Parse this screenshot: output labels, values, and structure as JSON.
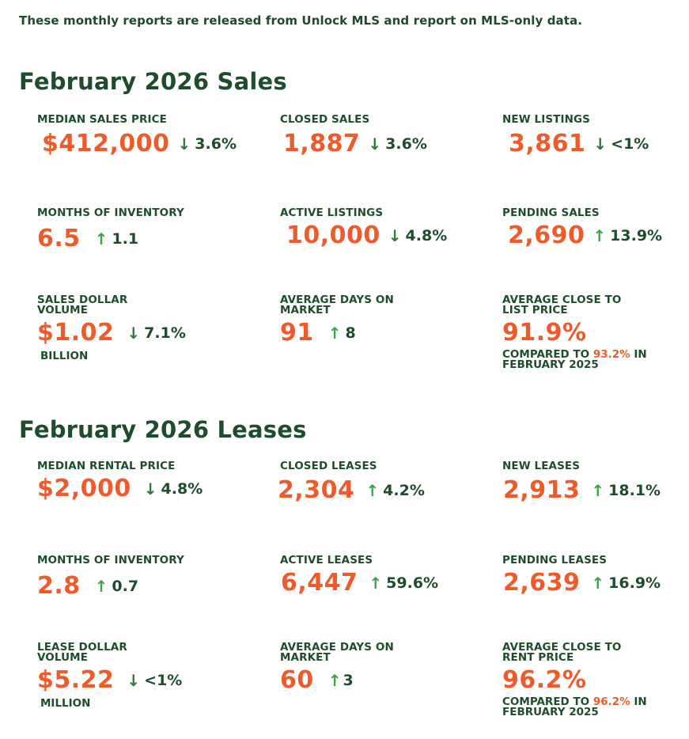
{
  "intro": "These monthly reports are released from Unlock MLS and report on MLS-only data.",
  "colors": {
    "accent": "#ee5a2a",
    "heading": "#1d4d2b",
    "arrow_up": "#3aa447",
    "arrow_down": "#2e7a3a"
  },
  "sales": {
    "title": "February 2026 Sales",
    "median_price": {
      "label": "MEDIAN SALES PRICE",
      "value": "$412,000",
      "arrow": "↓",
      "change": "3.6%"
    },
    "closed_sales": {
      "label": "CLOSED SALES",
      "value": "1,887",
      "arrow": "↓",
      "change": "3.6%"
    },
    "new_listings": {
      "label": "NEW LISTINGS",
      "value": "3,861",
      "arrow": "↓",
      "change": "<1%"
    },
    "months_inventory": {
      "label": "MONTHS OF INVENTORY",
      "value": "6.5",
      "arrow": "↑",
      "change": "1.1"
    },
    "active_listings": {
      "label": "ACTIVE LISTINGS",
      "value": "10,000",
      "arrow": "↓",
      "change": "4.8%"
    },
    "pending_sales": {
      "label": "PENDING SALES",
      "value": "2,690",
      "arrow": "↑",
      "change": "13.9%"
    },
    "dollar_volume": {
      "label_line1": "SALES DOLLAR",
      "label_line2": "VOLUME",
      "value": "$1.02",
      "arrow": "↓",
      "change": "7.1%",
      "unit": "BILLION"
    },
    "days_on_market": {
      "label_line1": "AVERAGE DAYS ON",
      "label_line2": "MARKET",
      "value": "91",
      "arrow": "↑",
      "change": "8"
    },
    "close_to_list": {
      "label_line1": "AVERAGE CLOSE TO",
      "label_line2": "LIST PRICE",
      "value": "91.9%",
      "compare_prefix": "COMPARED TO",
      "compare_value": "93.2%",
      "compare_suffix": "IN",
      "compare_line2": "FEBRUARY 2025"
    }
  },
  "leases": {
    "title": "February 2026 Leases",
    "median_rent": {
      "label": "MEDIAN RENTAL PRICE",
      "value": "$2,000",
      "arrow": "↓",
      "change": "4.8%"
    },
    "closed_leases": {
      "label": "CLOSED LEASES",
      "value": "2,304",
      "arrow": "↑",
      "change": "4.2%"
    },
    "new_leases": {
      "label": "NEW LEASES",
      "value": "2,913",
      "arrow": "↑",
      "change": "18.1%"
    },
    "months_inventory": {
      "label": "MONTHS OF INVENTORY",
      "value": "2.8",
      "arrow": "↑",
      "change": "0.7"
    },
    "active_leases": {
      "label": "ACTIVE LEASES",
      "value": "6,447",
      "arrow": "↑",
      "change": "59.6%"
    },
    "pending_leases": {
      "label": "PENDING LEASES",
      "value": "2,639",
      "arrow": "↑",
      "change": "16.9%"
    },
    "dollar_volume": {
      "label_line1": "LEASE DOLLAR",
      "label_line2": "VOLUME",
      "value": "$5.22",
      "arrow": "↓",
      "change": "<1%",
      "unit": "MILLION"
    },
    "days_on_market": {
      "label_line1": "AVERAGE DAYS ON",
      "label_line2": "MARKET",
      "value": "60",
      "arrow": "↑",
      "change": "3"
    },
    "close_to_rent": {
      "label_line1": "AVERAGE CLOSE TO",
      "label_line2": "RENT PRICE",
      "value": "96.2%",
      "compare_prefix": "COMPARED TO",
      "compare_value": "96.2%",
      "compare_suffix": "IN",
      "compare_line2": "FEBRUARY 2025"
    }
  }
}
